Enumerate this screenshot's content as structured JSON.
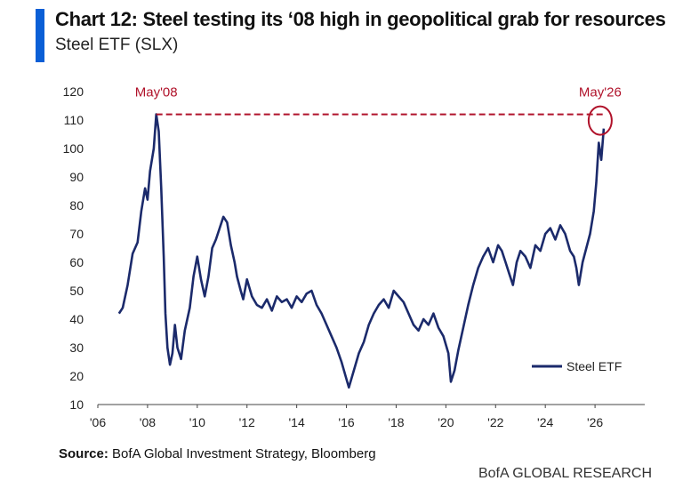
{
  "header": {
    "title": "Chart 12: Steel testing its ‘08 high in geopolitical grab for resources",
    "subtitle": "Steel ETF (SLX)"
  },
  "footer": {
    "source_label": "Source:",
    "source_text": "BofA Global Investment Strategy, Bloomberg",
    "brand": "BofA GLOBAL RESEARCH"
  },
  "colors": {
    "accent_bar": "#0a5fd6",
    "series": "#1b2a6b",
    "annotation": "#b0122a"
  },
  "chart_data": {
    "type": "line",
    "ylim": [
      10,
      120
    ],
    "yticks": [
      10,
      20,
      30,
      40,
      50,
      60,
      70,
      80,
      90,
      100,
      110,
      120
    ],
    "xlim": [
      2006,
      2028
    ],
    "xticks": [
      2006,
      2008,
      2010,
      2012,
      2014,
      2016,
      2018,
      2020,
      2022,
      2024,
      2026
    ],
    "xtick_labels": [
      "'06",
      "'08",
      "'10",
      "'12",
      "'14",
      "'16",
      "'18",
      "'20",
      "'22",
      "'24",
      "'26"
    ],
    "grid": false,
    "legend_position": "bottom-right",
    "series": [
      {
        "name": "Steel ETF",
        "x": [
          2006.85,
          2007.0,
          2007.2,
          2007.4,
          2007.6,
          2007.75,
          2007.9,
          2008.0,
          2008.1,
          2008.25,
          2008.35,
          2008.45,
          2008.55,
          2008.65,
          2008.72,
          2008.8,
          2008.9,
          2009.0,
          2009.1,
          2009.2,
          2009.35,
          2009.5,
          2009.7,
          2009.85,
          2010.0,
          2010.15,
          2010.3,
          2010.45,
          2010.6,
          2010.75,
          2010.9,
          2011.05,
          2011.2,
          2011.35,
          2011.5,
          2011.6,
          2011.75,
          2011.85,
          2012.0,
          2012.2,
          2012.4,
          2012.6,
          2012.8,
          2013.0,
          2013.2,
          2013.4,
          2013.6,
          2013.8,
          2014.0,
          2014.2,
          2014.4,
          2014.6,
          2014.8,
          2015.0,
          2015.2,
          2015.4,
          2015.6,
          2015.8,
          2016.0,
          2016.1,
          2016.3,
          2016.5,
          2016.7,
          2016.9,
          2017.1,
          2017.3,
          2017.5,
          2017.7,
          2017.9,
          2018.1,
          2018.3,
          2018.5,
          2018.7,
          2018.9,
          2019.1,
          2019.3,
          2019.5,
          2019.7,
          2019.9,
          2020.1,
          2020.2,
          2020.35,
          2020.5,
          2020.7,
          2020.9,
          2021.1,
          2021.3,
          2021.5,
          2021.7,
          2021.9,
          2022.1,
          2022.25,
          2022.4,
          2022.55,
          2022.7,
          2022.85,
          2023.0,
          2023.2,
          2023.4,
          2023.6,
          2023.8,
          2024.0,
          2024.2,
          2024.4,
          2024.6,
          2024.8,
          2025.0,
          2025.15,
          2025.25,
          2025.35,
          2025.5,
          2025.65,
          2025.8,
          2025.95,
          2026.05,
          2026.15,
          2026.25,
          2026.35
        ],
        "values": [
          42,
          44,
          52,
          63,
          67,
          78,
          86,
          82,
          92,
          100,
          112,
          106,
          86,
          62,
          42,
          30,
          24,
          28,
          38,
          30,
          26,
          36,
          44,
          55,
          62,
          54,
          48,
          55,
          65,
          68,
          72,
          76,
          74,
          66,
          60,
          55,
          50,
          47,
          54,
          48,
          45,
          44,
          47,
          43,
          48,
          46,
          47,
          44,
          48,
          46,
          49,
          50,
          45,
          42,
          38,
          34,
          30,
          25,
          19,
          16,
          22,
          28,
          32,
          38,
          42,
          45,
          47,
          44,
          50,
          48,
          46,
          42,
          38,
          36,
          40,
          38,
          42,
          37,
          34,
          28,
          18,
          22,
          29,
          37,
          45,
          52,
          58,
          62,
          65,
          60,
          66,
          64,
          60,
          56,
          52,
          60,
          64,
          62,
          58,
          66,
          64,
          70,
          72,
          68,
          73,
          70,
          64,
          62,
          58,
          52,
          60,
          65,
          70,
          78,
          88,
          102,
          96,
          107
        ]
      }
    ],
    "annotations": [
      {
        "label": "May'08",
        "x": 2008.35,
        "y": 112
      },
      {
        "label": "May'26",
        "x": 2026.35,
        "y": 112
      }
    ],
    "reference_line": {
      "y": 112,
      "from_x": 2008.35,
      "to_x": 2026.35,
      "style": "dashed"
    }
  }
}
